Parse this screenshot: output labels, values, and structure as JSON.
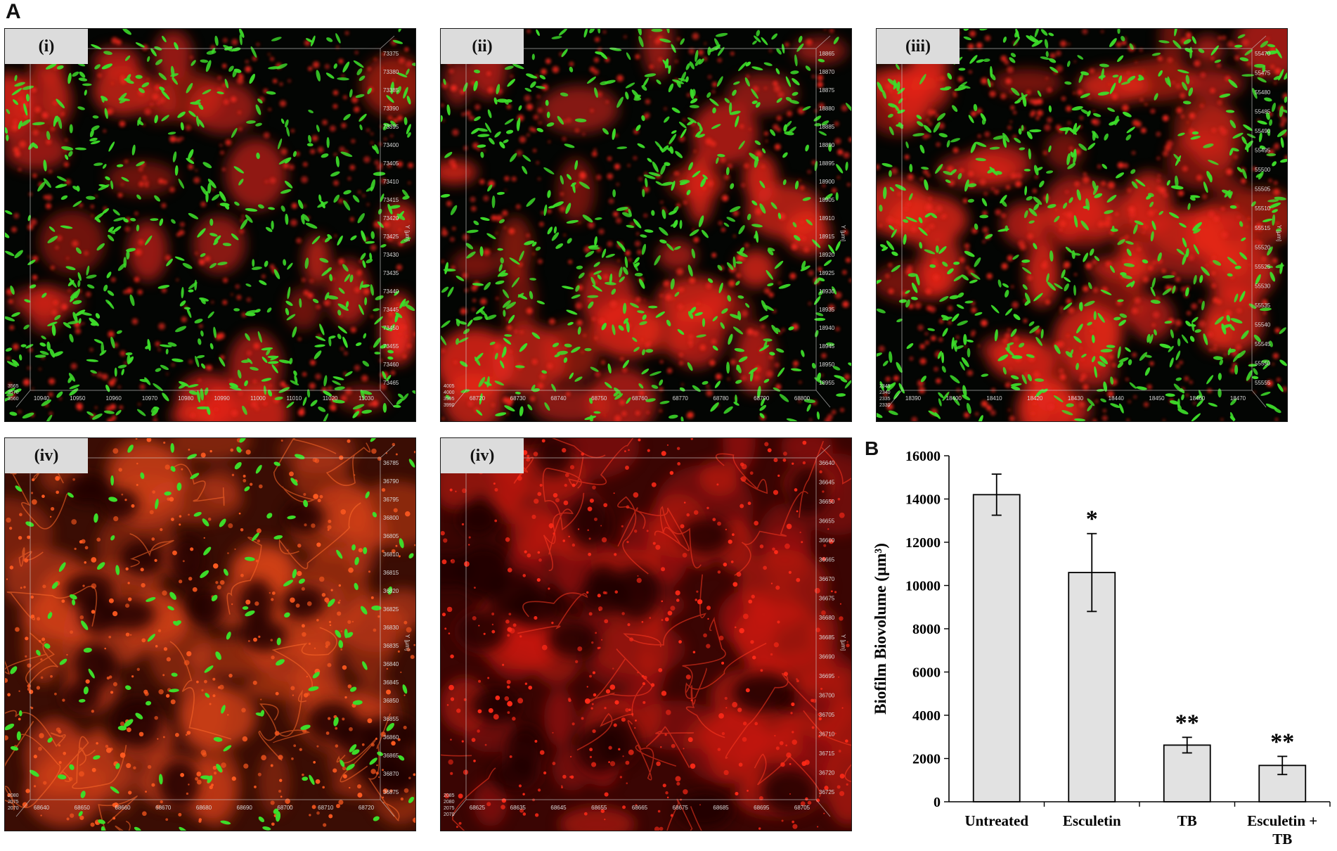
{
  "figure": {
    "panel_a_letter": "A",
    "panel_b_letter": "B"
  },
  "panels": [
    {
      "label": "(i)",
      "style": "mixed",
      "axis_y_ticks": [
        "73375",
        "73380",
        "73385",
        "73390",
        "73395",
        "73400",
        "73405",
        "73410",
        "73415",
        "73420",
        "73425",
        "73430",
        "73435",
        "73440",
        "73445",
        "73450",
        "73455",
        "73460",
        "73465"
      ],
      "axis_x_ticks": [
        "10940",
        "10950",
        "10960",
        "10970",
        "10980",
        "10990",
        "11000",
        "11010",
        "11020",
        "11030"
      ],
      "y_axis_name": "Y [µm]",
      "corner_ticks": [
        "3565",
        "3570",
        "3560"
      ]
    },
    {
      "label": "(ii)",
      "style": "mixed",
      "axis_y_ticks": [
        "18865",
        "18870",
        "18875",
        "18880",
        "18885",
        "18890",
        "18895",
        "18900",
        "18905",
        "18910",
        "18915",
        "18920",
        "18925",
        "18930",
        "18935",
        "18940",
        "18945",
        "18950",
        "18955"
      ],
      "axis_x_ticks": [
        "68720",
        "68730",
        "68740",
        "68750",
        "68760",
        "68770",
        "68780",
        "68790",
        "68800"
      ],
      "y_axis_name": "Y [µm]",
      "corner_ticks": [
        "4005",
        "4000",
        "3995",
        "3990"
      ]
    },
    {
      "label": "(iii)",
      "style": "mixed_dense",
      "axis_y_ticks": [
        "55470",
        "55475",
        "55480",
        "55485",
        "55490",
        "55495",
        "55500",
        "55505",
        "55510",
        "55515",
        "55520",
        "55525",
        "55530",
        "55535",
        "55540",
        "55545",
        "55550",
        "55555"
      ],
      "axis_x_ticks": [
        "18390",
        "18400",
        "18410",
        "18420",
        "18430",
        "18440",
        "18450",
        "18460",
        "18470"
      ],
      "y_axis_name": "Y [µm]",
      "corner_ticks": [
        "2345",
        "2340",
        "2335",
        "2330"
      ]
    },
    {
      "label": "(iv)",
      "style": "cells_green",
      "axis_y_ticks": [
        "36785",
        "36790",
        "36795",
        "36800",
        "36805",
        "36810",
        "36815",
        "36820",
        "36825",
        "36830",
        "36835",
        "36840",
        "36845",
        "36850",
        "36855",
        "36860",
        "36865",
        "36870",
        "36875"
      ],
      "axis_x_ticks": [
        "68640",
        "68650",
        "68660",
        "68670",
        "68680",
        "68690",
        "68700",
        "68710",
        "68720"
      ],
      "y_axis_name": "Y [µm]",
      "corner_ticks": [
        "2080",
        "2075",
        "2070"
      ]
    },
    {
      "label": "(iv)",
      "style": "cells_red",
      "axis_y_ticks": [
        "36640",
        "36645",
        "36650",
        "36655",
        "36660",
        "36665",
        "36670",
        "36675",
        "36680",
        "36685",
        "36690",
        "36695",
        "36700",
        "36705",
        "36710",
        "36715",
        "36720",
        "36725"
      ],
      "axis_x_ticks": [
        "68625",
        "68635",
        "68645",
        "68655",
        "68665",
        "68675",
        "68685",
        "68695",
        "68705"
      ],
      "y_axis_name": "Y [µm]",
      "corner_ticks": [
        "2085",
        "2080",
        "2075",
        "2070"
      ]
    }
  ],
  "colors": {
    "bacteria_green": "#3ddc2a",
    "bacteria_red": "#e8261a",
    "bar_fill": "#e2e2e2",
    "bar_stroke": "#000000"
  },
  "chart_data": {
    "type": "bar",
    "ylabel": "Biofilm Biovolume (µm³)",
    "categories": [
      [
        "Untreated"
      ],
      [
        "Esculetin"
      ],
      [
        "TB"
      ],
      [
        "Esculetin +",
        "TB"
      ]
    ],
    "values": [
      14200,
      10600,
      2620,
      1680
    ],
    "errors": [
      950,
      1800,
      360,
      420
    ],
    "significance": [
      "",
      "*",
      "**",
      "**"
    ],
    "ylim": [
      0,
      16000
    ],
    "yticks": [
      0,
      2000,
      4000,
      6000,
      8000,
      10000,
      12000,
      14000,
      16000
    ],
    "grid": false,
    "legend": "none"
  }
}
